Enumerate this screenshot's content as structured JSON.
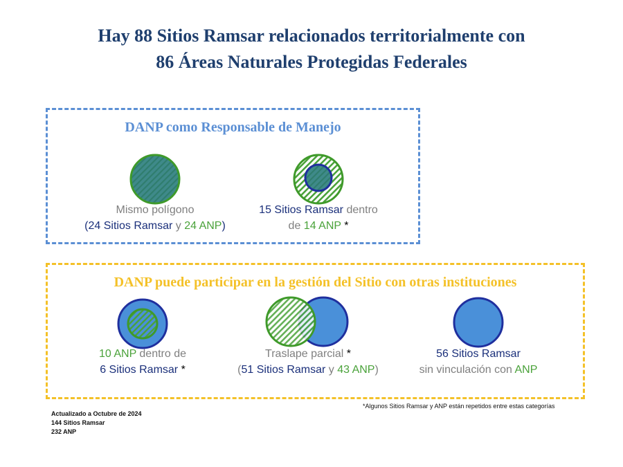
{
  "title": {
    "line1": "Hay 88 Sitios Ramsar relacionados territorialmente con",
    "line2": "86 Áreas Naturales Protegidas Federales"
  },
  "section_manejo": {
    "title": "DANP como Responsable de Manejo",
    "items": [
      {
        "name": "mismo-poligono",
        "line1": "Mismo polígono",
        "line2_open": "(",
        "line2_ramsar": "24 Sitios Ramsar",
        "line2_y": " y ",
        "line2_anp": "24 ANP",
        "line2_close": ")"
      },
      {
        "name": "ramsar-dentro-anp",
        "line1_ramsar": "15 Sitios Ramsar",
        "line1_rest": " dentro",
        "line2_de": "de ",
        "line2_anp": "14 ANP",
        "line2_star": " *"
      }
    ]
  },
  "section_participa": {
    "title": "DANP puede participar en la gestión del Sitio con otras instituciones",
    "items": [
      {
        "name": "anp-dentro-ramsar",
        "line1_anp": "10 ANP",
        "line1_rest": " dentro de",
        "line2_ramsar": "6 Sitios Ramsar",
        "line2_star": " *"
      },
      {
        "name": "traslape-parcial",
        "line1": "Traslape parcial",
        "line1_star": " *",
        "line2_open": "(",
        "line2_ramsar": "51 Sitios Ramsar",
        "line2_y": " y ",
        "line2_anp": "43 ANP",
        "line2_close": ")"
      },
      {
        "name": "sin-vinculacion",
        "line1": "56 Sitios Ramsar",
        "line2_rest": "sin vinculación con ",
        "line2_anp": "ANP"
      }
    ]
  },
  "footnote": "*Algunos Sitios Ramsar y ANP están repetidos entre estas categorías",
  "footer": {
    "updated": "Actualizado a Octubre de 2024",
    "ramsar_total": "144 Sitios Ramsar",
    "anp_total": "232 ANP"
  },
  "colors": {
    "title": "#1f3f6e",
    "box_blue": "#5b8fd4",
    "box_yellow": "#f4c128",
    "ramsar_fill": "#4a90d9",
    "ramsar_stroke": "#1f2f9e",
    "anp_stroke": "#3f9a2a",
    "same_fill": "#3f8a8a"
  }
}
